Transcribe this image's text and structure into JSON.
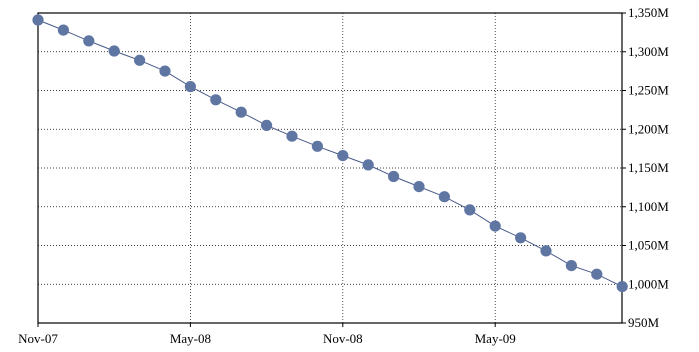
{
  "chart_data": {
    "type": "line",
    "title": "",
    "xlabel": "",
    "ylabel": "",
    "x_tick_labels": [
      "Nov-07",
      "May-08",
      "Nov-08",
      "May-09"
    ],
    "y_tick_labels": [
      "950M",
      "1,000M",
      "1,050M",
      "1,100M",
      "1,150M",
      "1,200M",
      "1,250M",
      "1,300M",
      "1,350M"
    ],
    "y_axis_side": "right",
    "ylim": [
      950,
      1350
    ],
    "y_unit": "M",
    "grid": true,
    "marker": "circle",
    "series_color": "#5f76a2",
    "x": [
      "2007-11",
      "2007-12",
      "2008-01",
      "2008-02",
      "2008-03",
      "2008-04",
      "2008-05",
      "2008-06",
      "2008-07",
      "2008-08",
      "2008-09",
      "2008-10",
      "2008-11",
      "2008-12",
      "2009-01",
      "2009-02",
      "2009-03",
      "2009-04",
      "2009-05",
      "2009-06",
      "2009-07",
      "2009-08",
      "2009-09",
      "2009-10"
    ],
    "series": [
      {
        "values": [
          1341,
          1328,
          1314,
          1301,
          1289,
          1275,
          1255,
          1238,
          1222,
          1205,
          1191,
          1178,
          1166,
          1154,
          1139,
          1126,
          1113,
          1096,
          1075,
          1060,
          1043,
          1024,
          1013,
          997
        ]
      }
    ]
  }
}
